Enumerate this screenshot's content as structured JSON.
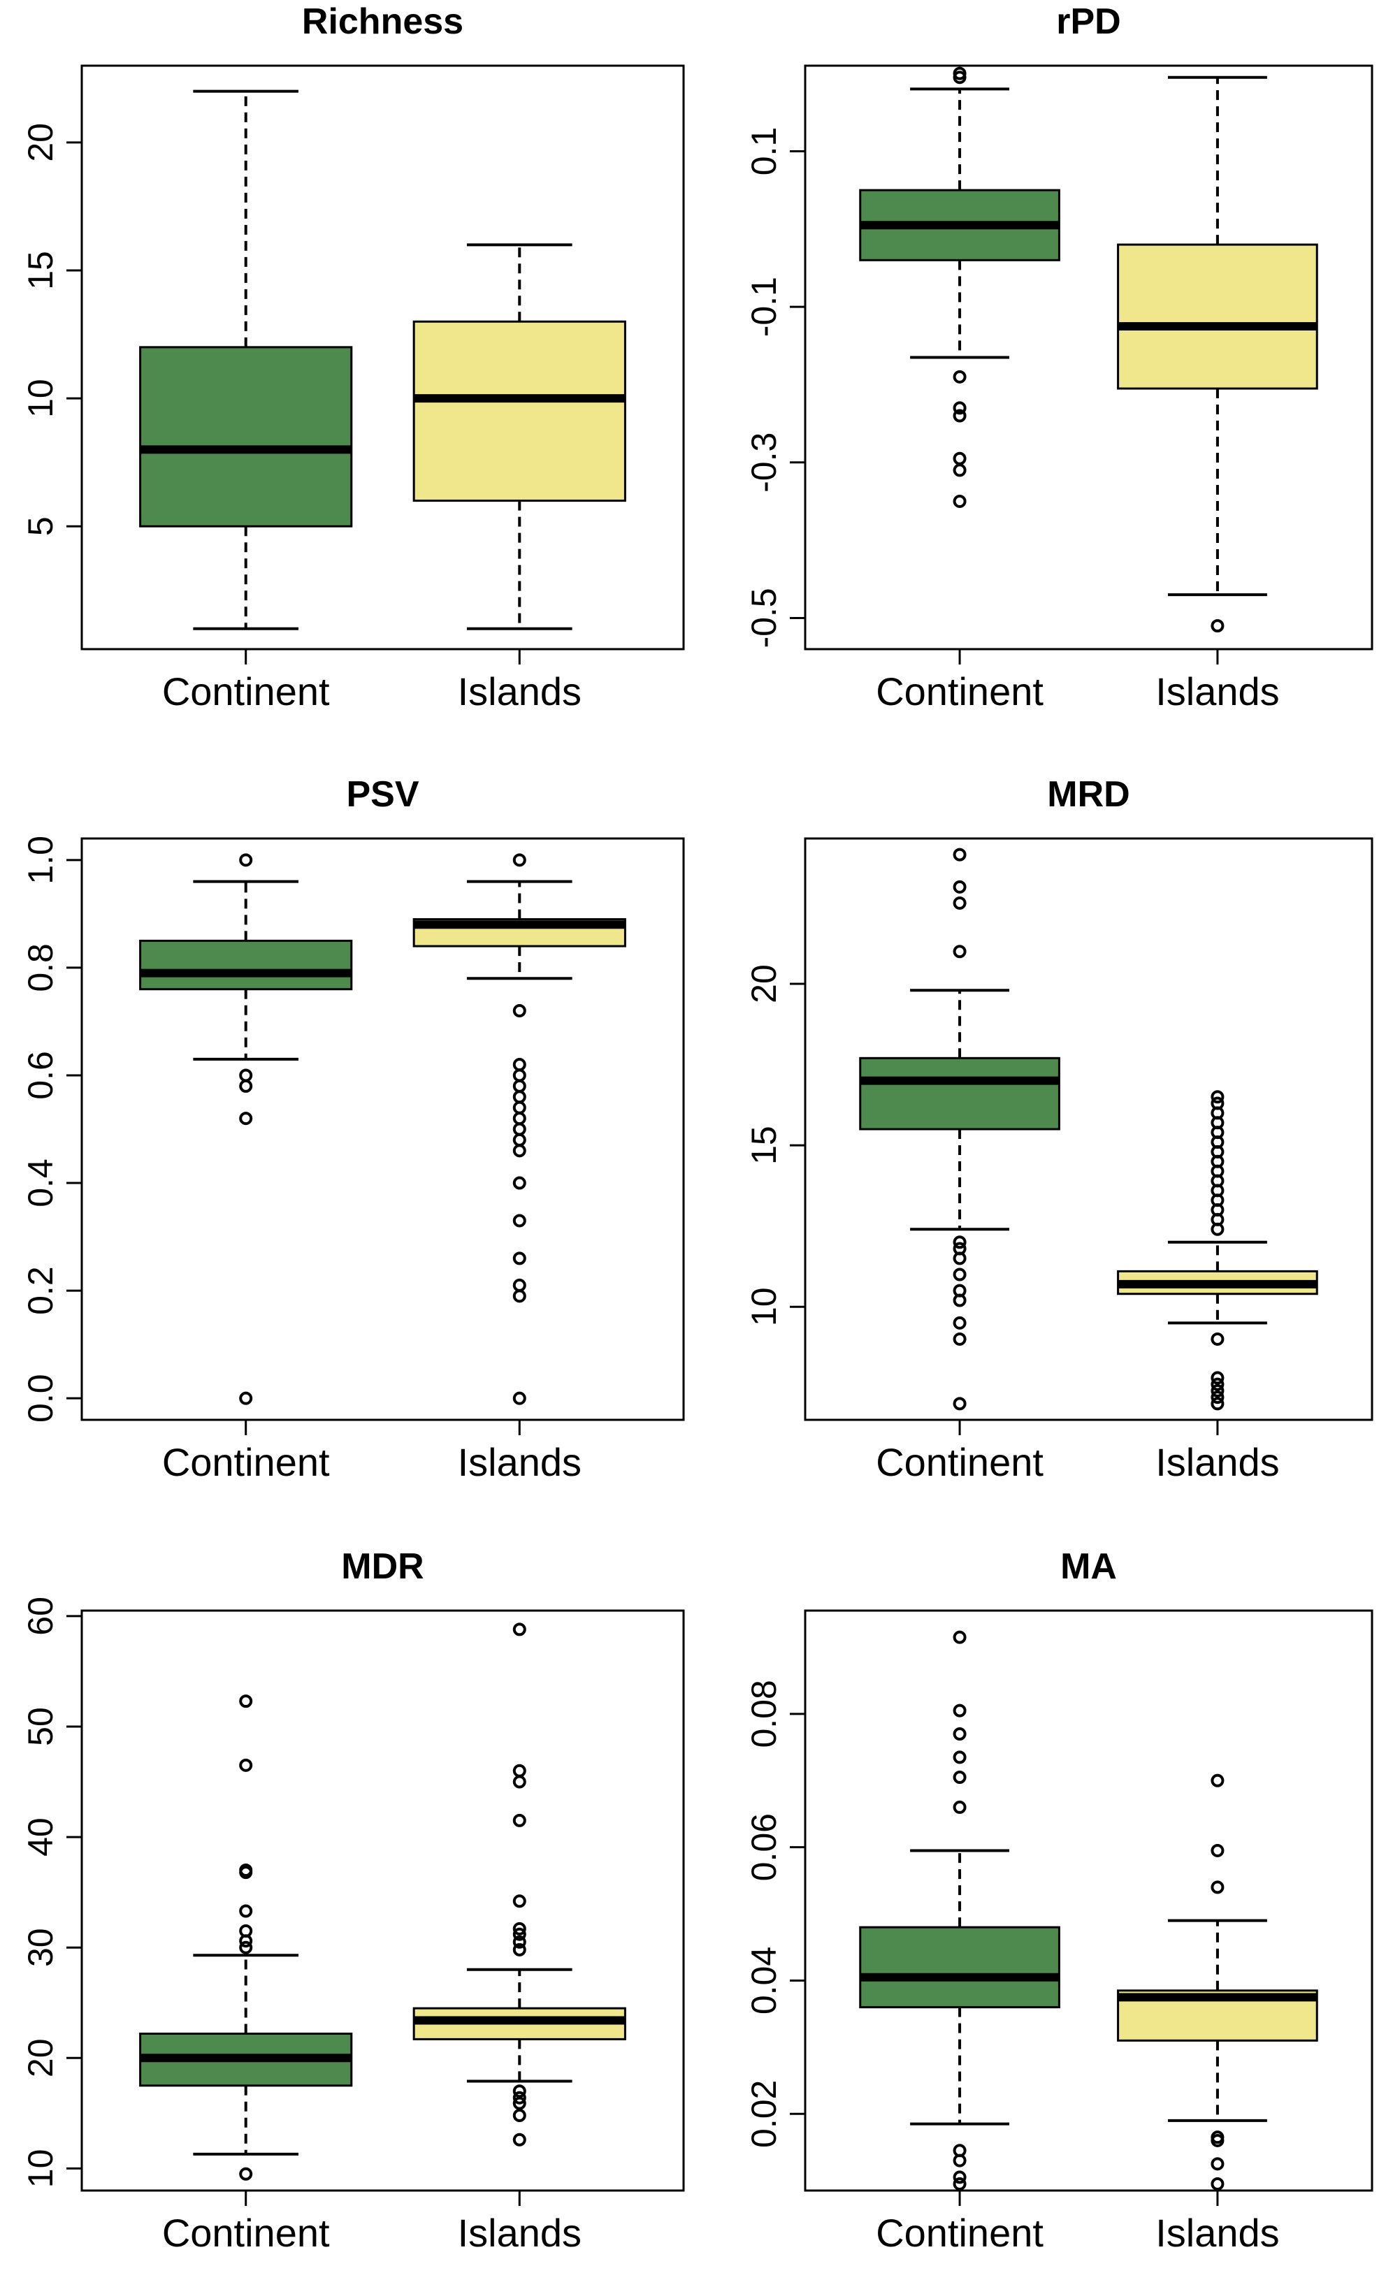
{
  "colors": {
    "continent": "#4e8a4e",
    "islands": "#f0e68c"
  },
  "chart_data": [
    {
      "type": "box",
      "title": "Richness",
      "categories": [
        "Continent",
        "Islands"
      ],
      "ylim": [
        0.2,
        23.0
      ],
      "yticks": [
        5,
        10,
        15,
        20
      ],
      "ytick_labels": [
        "5",
        "10",
        "15",
        "20"
      ],
      "boxes": [
        {
          "category": "Continent",
          "whisker_low": 1,
          "q1": 5,
          "median": 8,
          "q3": 12,
          "whisker_high": 22,
          "outliers": []
        },
        {
          "category": "Islands",
          "whisker_low": 1,
          "q1": 6,
          "median": 10,
          "q3": 13,
          "whisker_high": 16,
          "outliers": []
        }
      ]
    },
    {
      "type": "box",
      "title": "rPD",
      "categories": [
        "Continent",
        "Islands"
      ],
      "ylim": [
        -0.54,
        0.21
      ],
      "yticks": [
        -0.5,
        -0.3,
        -0.1,
        0.1
      ],
      "ytick_labels": [
        "-0.5",
        "-0.3",
        "-0.1",
        "0.1"
      ],
      "boxes": [
        {
          "category": "Continent",
          "whisker_low": -0.165,
          "q1": -0.04,
          "median": 0.005,
          "q3": 0.05,
          "whisker_high": 0.18,
          "outliers": [
            0.2,
            0.195,
            -0.19,
            -0.23,
            -0.24,
            -0.295,
            -0.31,
            -0.35
          ]
        },
        {
          "category": "Islands",
          "whisker_low": -0.47,
          "q1": -0.205,
          "median": -0.125,
          "q3": -0.02,
          "whisker_high": 0.195,
          "outliers": [
            -0.51
          ]
        }
      ]
    },
    {
      "type": "box",
      "title": "PSV",
      "categories": [
        "Continent",
        "Islands"
      ],
      "ylim": [
        -0.04,
        1.04
      ],
      "yticks": [
        0.0,
        0.2,
        0.4,
        0.6,
        0.8,
        1.0
      ],
      "ytick_labels": [
        "0.0",
        "0.2",
        "0.4",
        "0.6",
        "0.8",
        "1.0"
      ],
      "boxes": [
        {
          "category": "Continent",
          "whisker_low": 0.63,
          "q1": 0.76,
          "median": 0.79,
          "q3": 0.85,
          "whisker_high": 0.96,
          "outliers": [
            1.0,
            0.6,
            0.58,
            0.52,
            0.0
          ]
        },
        {
          "category": "Islands",
          "whisker_low": 0.78,
          "q1": 0.84,
          "median": 0.88,
          "q3": 0.89,
          "whisker_high": 0.96,
          "outliers": [
            1.0,
            0.72,
            0.62,
            0.6,
            0.58,
            0.56,
            0.54,
            0.52,
            0.5,
            0.48,
            0.46,
            0.4,
            0.33,
            0.26,
            0.21,
            0.19,
            0.0
          ]
        }
      ]
    },
    {
      "type": "box",
      "title": "MRD",
      "categories": [
        "Continent",
        "Islands"
      ],
      "ylim": [
        6.5,
        24.5
      ],
      "yticks": [
        10,
        15,
        20
      ],
      "ytick_labels": [
        "10",
        "15",
        "20"
      ],
      "boxes": [
        {
          "category": "Continent",
          "whisker_low": 12.4,
          "q1": 15.5,
          "median": 17.0,
          "q3": 17.7,
          "whisker_high": 19.8,
          "outliers": [
            24.0,
            23.0,
            22.5,
            21.0,
            12.0,
            11.8,
            11.5,
            11.0,
            10.5,
            10.2,
            9.5,
            9.0,
            7.0
          ]
        },
        {
          "category": "Islands",
          "whisker_low": 9.5,
          "q1": 10.4,
          "median": 10.7,
          "q3": 11.1,
          "whisker_high": 12.0,
          "outliers": [
            16.5,
            16.3,
            16.0,
            15.7,
            15.4,
            15.1,
            14.8,
            14.5,
            14.2,
            13.9,
            13.6,
            13.3,
            13.0,
            12.7,
            12.4,
            9.0,
            7.8,
            7.6,
            7.4,
            7.2,
            7.0
          ]
        }
      ]
    },
    {
      "type": "box",
      "title": "MDR",
      "categories": [
        "Continent",
        "Islands"
      ],
      "ylim": [
        8.0,
        60.5
      ],
      "yticks": [
        10,
        20,
        30,
        40,
        50,
        60
      ],
      "ytick_labels": [
        "10",
        "20",
        "30",
        "40",
        "50",
        "60"
      ],
      "boxes": [
        {
          "category": "Continent",
          "whisker_low": 11.3,
          "q1": 17.5,
          "median": 20.0,
          "q3": 22.2,
          "whisker_high": 29.3,
          "outliers": [
            52.3,
            46.5,
            37.0,
            36.8,
            33.3,
            31.5,
            30.6,
            30.0,
            9.5
          ]
        },
        {
          "category": "Islands",
          "whisker_low": 17.9,
          "q1": 21.7,
          "median": 23.4,
          "q3": 24.5,
          "whisker_high": 28.0,
          "outliers": [
            58.8,
            46.0,
            45.0,
            41.5,
            34.2,
            31.7,
            31.2,
            30.5,
            29.8,
            17.0,
            16.4,
            15.9,
            14.8,
            12.6
          ]
        }
      ]
    },
    {
      "type": "box",
      "title": "MA",
      "categories": [
        "Continent",
        "Islands"
      ],
      "ylim": [
        0.0085,
        0.0955
      ],
      "yticks": [
        0.02,
        0.04,
        0.06,
        0.08
      ],
      "ytick_labels": [
        "0.02",
        "0.04",
        "0.06",
        "0.08"
      ],
      "boxes": [
        {
          "category": "Continent",
          "whisker_low": 0.0185,
          "q1": 0.036,
          "median": 0.0405,
          "q3": 0.048,
          "whisker_high": 0.0595,
          "outliers": [
            0.0915,
            0.0805,
            0.077,
            0.0735,
            0.0705,
            0.066,
            0.0145,
            0.013,
            0.0105,
            0.0095
          ]
        },
        {
          "category": "Islands",
          "whisker_low": 0.019,
          "q1": 0.031,
          "median": 0.0375,
          "q3": 0.0385,
          "whisker_high": 0.049,
          "outliers": [
            0.07,
            0.0595,
            0.054,
            0.0165,
            0.016,
            0.0125,
            0.0095
          ]
        }
      ]
    }
  ]
}
